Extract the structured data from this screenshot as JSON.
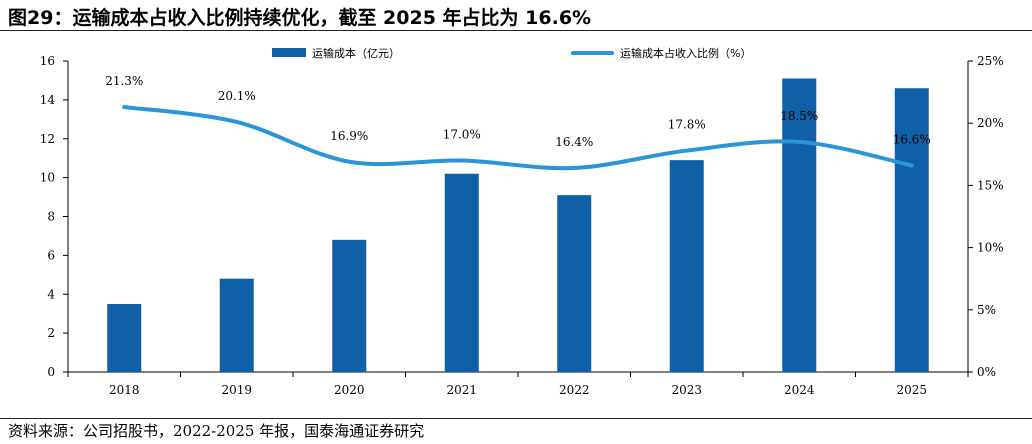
{
  "title": "图29：运输成本占收入比例持续优化，截至 2025 年占比为 16.6%",
  "source": "资料来源：公司招股书，2022-2025 年报，国泰海通证券研究",
  "colors": {
    "bar": "#1060A8",
    "line": "#2B95D8"
  },
  "chart_data": {
    "type": "bar",
    "categories": [
      "2018",
      "2019",
      "2020",
      "2021",
      "2022",
      "2023",
      "2024",
      "2025"
    ],
    "series": [
      {
        "name": "运输成本（亿元）",
        "type": "bar",
        "axis": "left",
        "values": [
          3.5,
          4.8,
          6.8,
          10.2,
          9.1,
          10.9,
          15.1,
          14.6
        ]
      },
      {
        "name": "运输成本占收入比例（%）",
        "type": "line",
        "axis": "right",
        "values": [
          21.3,
          20.1,
          16.9,
          17.0,
          16.4,
          17.8,
          18.5,
          16.6
        ],
        "labels": [
          "21.3%",
          "20.1%",
          "16.9%",
          "17.0%",
          "16.4%",
          "17.8%",
          "18.5%",
          "16.6%"
        ]
      }
    ],
    "ylim_left": [
      0,
      16
    ],
    "yticks_left": [
      "0",
      "2",
      "4",
      "6",
      "8",
      "10",
      "12",
      "14",
      "16"
    ],
    "ylim_right": [
      0,
      25
    ],
    "yticks_right": [
      "0%",
      "5%",
      "10%",
      "15%",
      "20%",
      "25%"
    ],
    "legend_position": "top-center",
    "grid": false
  }
}
